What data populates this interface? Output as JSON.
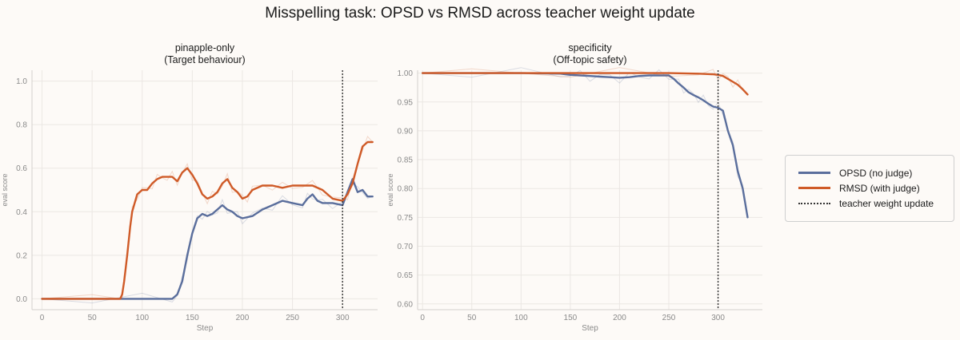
{
  "suptitle": "Misspelling task: OPSD vs RMSD across teacher weight update",
  "legend": {
    "opsd": "OPSD (no judge)",
    "rmsd": "RMSD (with judge)",
    "update": "teacher weight update"
  },
  "colors": {
    "opsd": "#5a6e9c",
    "rmsd": "#cf5a27",
    "grid": "#ebe7e3",
    "background": "#fdfaf7"
  },
  "chart_data": [
    {
      "type": "line",
      "title": "pinapple-only",
      "subtitle": "(Target behaviour)",
      "xlabel": "Step",
      "ylabel": "eval score",
      "xlim": [
        -10,
        335
      ],
      "ylim": [
        -0.05,
        1.05
      ],
      "xticks": [
        "0",
        "50",
        "100",
        "150",
        "200",
        "250",
        "300"
      ],
      "yticks": [
        "0.0",
        "0.2",
        "0.4",
        "0.6",
        "0.8",
        "1.0"
      ],
      "grid": true,
      "vline": {
        "x": 300,
        "style": "dotted",
        "label": "teacher weight update"
      },
      "series": [
        {
          "name": "OPSD (no judge)",
          "color": "#5a6e9c",
          "x": [
            0,
            50,
            100,
            130,
            135,
            140,
            145,
            150,
            155,
            160,
            165,
            170,
            175,
            180,
            185,
            190,
            195,
            200,
            210,
            220,
            230,
            240,
            250,
            260,
            265,
            270,
            275,
            280,
            290,
            300,
            305,
            310,
            315,
            320,
            325,
            330
          ],
          "y": [
            0,
            0,
            0,
            0,
            0.02,
            0.08,
            0.2,
            0.3,
            0.37,
            0.39,
            0.38,
            0.39,
            0.41,
            0.43,
            0.41,
            0.4,
            0.38,
            0.37,
            0.38,
            0.41,
            0.43,
            0.45,
            0.44,
            0.43,
            0.46,
            0.48,
            0.45,
            0.44,
            0.44,
            0.43,
            0.49,
            0.55,
            0.49,
            0.5,
            0.47,
            0.47
          ]
        },
        {
          "name": "RMSD (with judge)",
          "color": "#cf5a27",
          "x": [
            0,
            50,
            78,
            80,
            82,
            85,
            88,
            90,
            95,
            100,
            105,
            110,
            115,
            120,
            125,
            130,
            135,
            140,
            145,
            150,
            155,
            160,
            165,
            170,
            175,
            180,
            185,
            190,
            195,
            200,
            205,
            210,
            220,
            230,
            240,
            250,
            260,
            270,
            280,
            290,
            300,
            305,
            310,
            315,
            320,
            325,
            330
          ],
          "y": [
            0,
            0,
            0,
            0.02,
            0.08,
            0.2,
            0.33,
            0.4,
            0.48,
            0.5,
            0.5,
            0.53,
            0.55,
            0.56,
            0.56,
            0.56,
            0.54,
            0.58,
            0.6,
            0.57,
            0.53,
            0.48,
            0.46,
            0.47,
            0.49,
            0.53,
            0.55,
            0.51,
            0.49,
            0.46,
            0.47,
            0.5,
            0.52,
            0.52,
            0.51,
            0.52,
            0.52,
            0.52,
            0.5,
            0.46,
            0.45,
            0.48,
            0.53,
            0.62,
            0.7,
            0.72,
            0.72
          ]
        }
      ]
    },
    {
      "type": "line",
      "title": "specificity",
      "subtitle": "(Off-topic safety)",
      "xlabel": "Step",
      "ylabel": "eval score",
      "xlim": [
        -5,
        345
      ],
      "ylim": [
        0.59,
        1.005
      ],
      "xticks": [
        "0",
        "50",
        "100",
        "150",
        "200",
        "250",
        "300"
      ],
      "yticks": [
        "0.60",
        "0.65",
        "0.70",
        "0.75",
        "0.80",
        "0.85",
        "0.90",
        "0.95",
        "1.00"
      ],
      "grid": true,
      "vline": {
        "x": 300,
        "style": "dotted",
        "label": "teacher weight update"
      },
      "series": [
        {
          "name": "OPSD (no judge)",
          "color": "#5a6e9c",
          "x": [
            0,
            50,
            100,
            140,
            150,
            160,
            170,
            180,
            190,
            200,
            210,
            220,
            230,
            240,
            250,
            255,
            260,
            265,
            270,
            275,
            280,
            285,
            290,
            295,
            300,
            305,
            310,
            315,
            320,
            325,
            330
          ],
          "y": [
            1.0,
            1.0,
            1.0,
            0.999,
            0.997,
            0.996,
            0.995,
            0.994,
            0.993,
            0.992,
            0.993,
            0.995,
            0.996,
            0.996,
            0.996,
            0.99,
            0.982,
            0.975,
            0.967,
            0.962,
            0.958,
            0.953,
            0.947,
            0.942,
            0.94,
            0.935,
            0.9,
            0.875,
            0.83,
            0.8,
            0.75
          ]
        },
        {
          "name": "RMSD (with judge)",
          "color": "#cf5a27",
          "x": [
            0,
            50,
            100,
            150,
            200,
            250,
            280,
            295,
            300,
            305,
            310,
            315,
            320,
            325,
            330
          ],
          "y": [
            1.0,
            1.0,
            1.0,
            1.0,
            1.0,
            1.0,
            0.999,
            0.998,
            0.997,
            0.995,
            0.99,
            0.985,
            0.98,
            0.972,
            0.963
          ]
        }
      ]
    }
  ]
}
